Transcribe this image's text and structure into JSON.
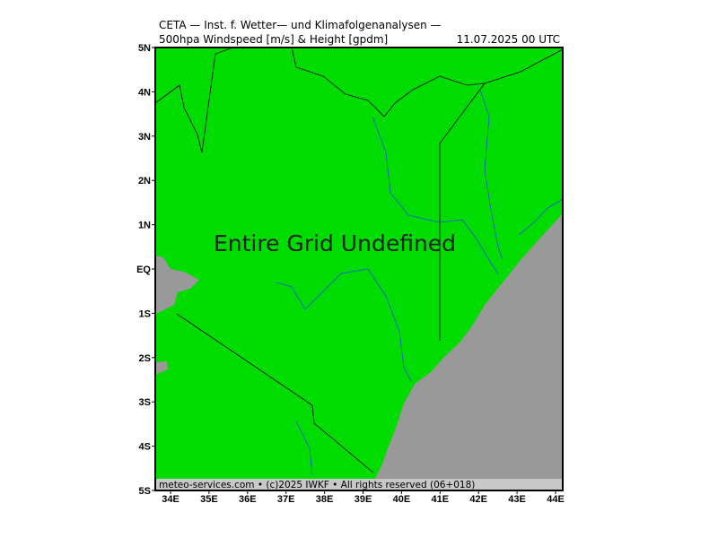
{
  "header": {
    "line1": "CETA — Inst. f. Wetter— und Klimafolgenanalysen —",
    "product": "500hpa Windspeed [m/s] & Height [gpdm]",
    "time": "11.07.2025 00 UTC"
  },
  "map": {
    "lat_labels": [
      "5N",
      "4N",
      "3N",
      "2N",
      "1N",
      "EQ",
      "1S",
      "2S",
      "3S",
      "4S",
      "5S"
    ],
    "lon_labels": [
      "34E",
      "35E",
      "36E",
      "37E",
      "38E",
      "39E",
      "40E",
      "41E",
      "42E",
      "43E",
      "44E"
    ],
    "message": "Entire Grid Undefined"
  },
  "footer": "meteo-services.com • (c)2025 IWKF • All rights reserved (06+018)"
}
